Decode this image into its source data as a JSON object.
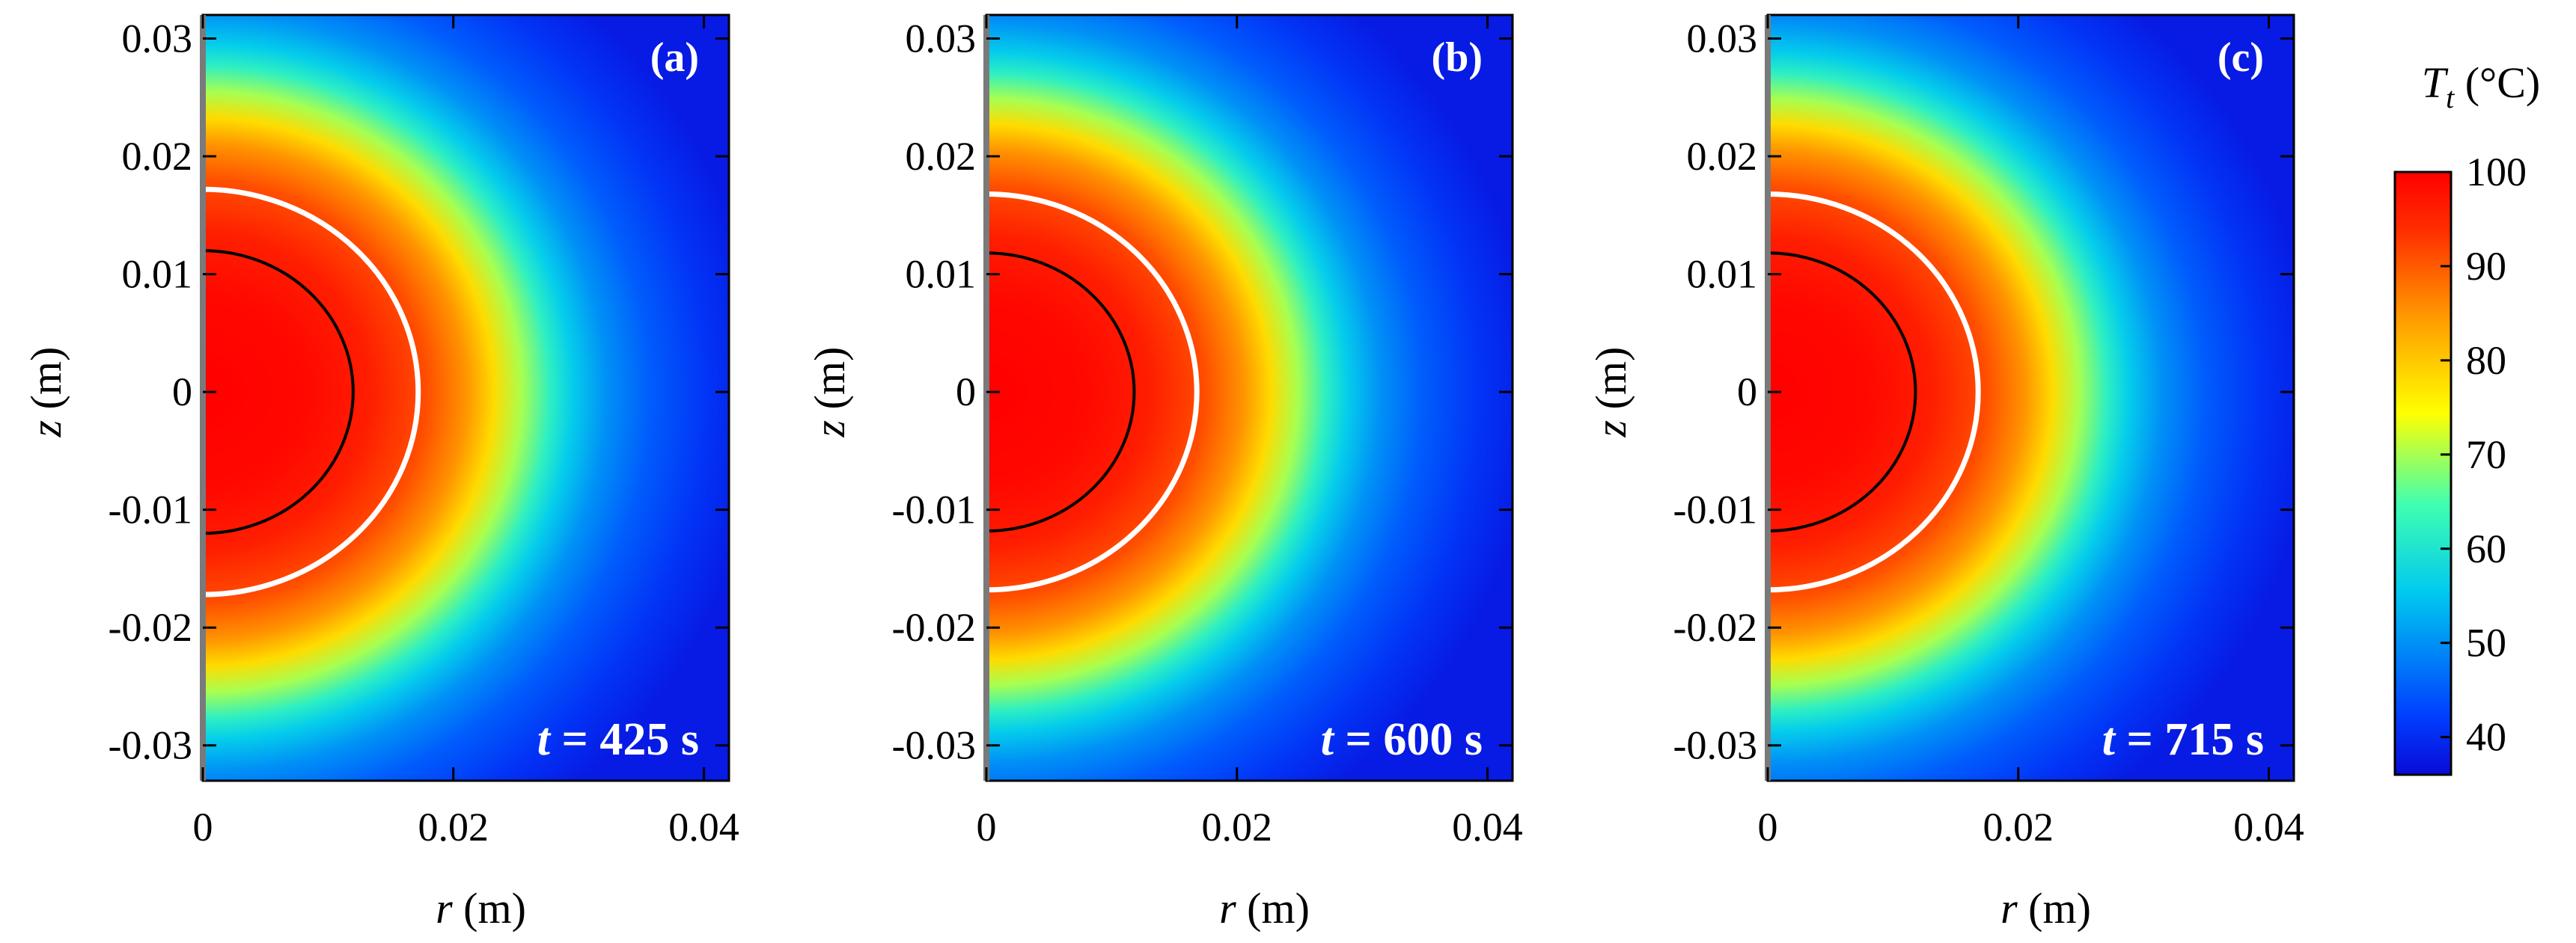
{
  "chart_data": [
    {
      "type": "heatmap",
      "panel": "(a)",
      "time_label": {
        "var": "t",
        "eq": " = 425 s"
      },
      "xlabel": {
        "var": "r",
        "unit": " (m)"
      },
      "ylabel": {
        "var": "z",
        "unit": " (m)"
      },
      "xlim": [
        0,
        0.042
      ],
      "ylim": [
        -0.033,
        0.032
      ],
      "xticks": [
        0,
        0.02,
        0.04
      ],
      "xtick_labels": [
        "0",
        "0.02",
        "0.04"
      ],
      "yticks": [
        0.03,
        0.02,
        0.01,
        0,
        -0.01,
        -0.02,
        -0.03
      ],
      "ytick_labels": [
        "0.03",
        "0.02",
        "0.01",
        "0",
        "-0.01",
        "-0.02",
        "-0.03"
      ],
      "field": {
        "variable": "T_t",
        "center_value": 100,
        "ambient_value": 37,
        "inner_contour_radius": 0.012,
        "outer_contour_radius": 0.0172
      },
      "contours": [
        {
          "name": "inner",
          "radius": 0.012,
          "color": "#000000"
        },
        {
          "name": "outer",
          "radius": 0.0172,
          "color": "#ffffff"
        }
      ]
    },
    {
      "type": "heatmap",
      "panel": "(b)",
      "time_label": {
        "var": "t",
        "eq": " = 600 s"
      },
      "xlabel": {
        "var": "r",
        "unit": " (m)"
      },
      "ylabel": {
        "var": "z",
        "unit": " (m)"
      },
      "xlim": [
        0,
        0.042
      ],
      "ylim": [
        -0.033,
        0.032
      ],
      "xticks": [
        0,
        0.02,
        0.04
      ],
      "xtick_labels": [
        "0",
        "0.02",
        "0.04"
      ],
      "yticks": [
        0.03,
        0.02,
        0.01,
        0,
        -0.01,
        -0.02,
        -0.03
      ],
      "ytick_labels": [
        "0.03",
        "0.02",
        "0.01",
        "0",
        "-0.01",
        "-0.02",
        "-0.03"
      ],
      "field": {
        "variable": "T_t",
        "center_value": 100,
        "ambient_value": 37,
        "inner_contour_radius": 0.0118,
        "outer_contour_radius": 0.0168
      },
      "contours": [
        {
          "name": "inner",
          "radius": 0.0118,
          "color": "#000000"
        },
        {
          "name": "outer",
          "radius": 0.0168,
          "color": "#ffffff"
        }
      ]
    },
    {
      "type": "heatmap",
      "panel": "(c)",
      "time_label": {
        "var": "t",
        "eq": " = 715 s"
      },
      "xlabel": {
        "var": "r",
        "unit": " (m)"
      },
      "ylabel": {
        "var": "z",
        "unit": " (m)"
      },
      "xlim": [
        0,
        0.042
      ],
      "ylim": [
        -0.033,
        0.032
      ],
      "xticks": [
        0,
        0.02,
        0.04
      ],
      "xtick_labels": [
        "0",
        "0.02",
        "0.04"
      ],
      "yticks": [
        0.03,
        0.02,
        0.01,
        0,
        -0.01,
        -0.02,
        -0.03
      ],
      "ytick_labels": [
        "0.03",
        "0.02",
        "0.01",
        "0",
        "-0.01",
        "-0.02",
        "-0.03"
      ],
      "field": {
        "variable": "T_t",
        "center_value": 100,
        "ambient_value": 37,
        "inner_contour_radius": 0.0118,
        "outer_contour_radius": 0.0168
      },
      "contours": [
        {
          "name": "inner",
          "radius": 0.0118,
          "color": "#000000"
        },
        {
          "name": "outer",
          "radius": 0.0168,
          "color": "#ffffff"
        }
      ]
    }
  ],
  "colorbar": {
    "title": {
      "var": "T",
      "sub": "t",
      "unit": " (°C)"
    },
    "range": [
      36,
      100
    ],
    "ticks": [
      100,
      90,
      80,
      70,
      60,
      50,
      40
    ],
    "tick_labels": [
      "100",
      "90",
      "80",
      "70",
      "60",
      "50",
      "40"
    ],
    "colormap": [
      [
        0.0,
        "#0a0ad8"
      ],
      [
        0.1,
        "#0040ff"
      ],
      [
        0.3,
        "#00c8f0"
      ],
      [
        0.45,
        "#40ffb0"
      ],
      [
        0.6,
        "#ffff00"
      ],
      [
        0.75,
        "#ffa000"
      ],
      [
        0.9,
        "#ff3000"
      ],
      [
        1.0,
        "#ff0000"
      ]
    ]
  }
}
